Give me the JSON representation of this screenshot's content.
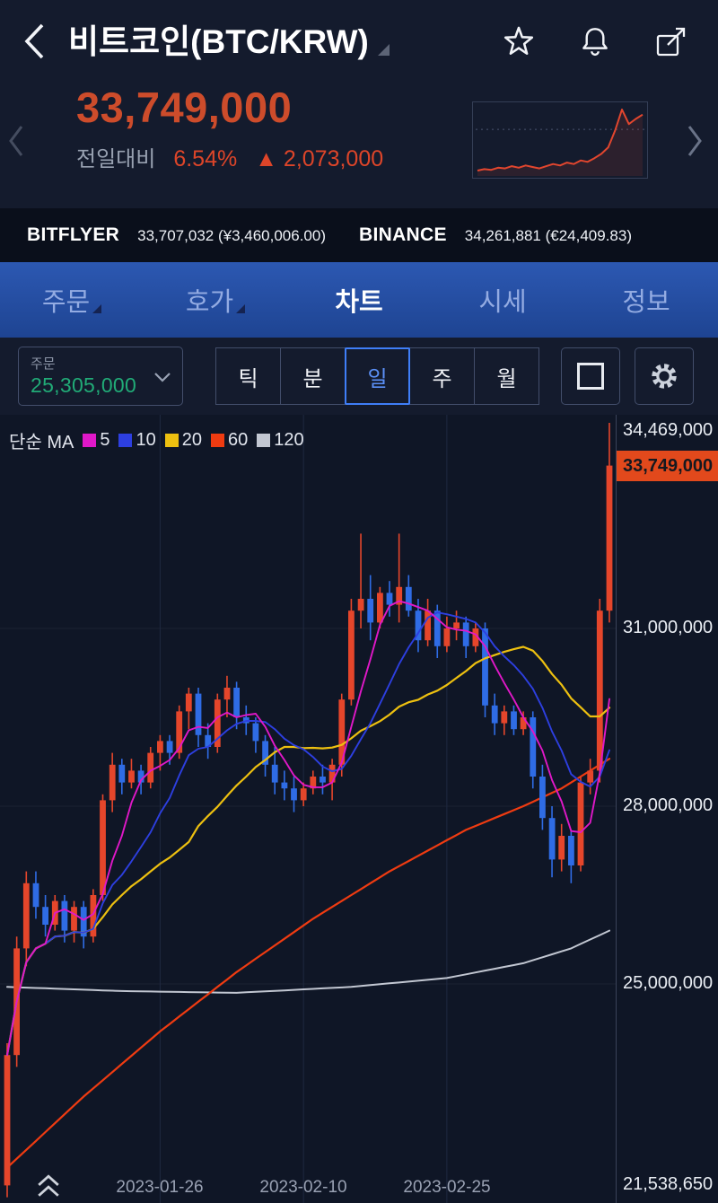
{
  "header": {
    "title": "비트코인(BTC/KRW)",
    "icons": {
      "back": "chevron-left",
      "title_caret": "triangle-down",
      "favorite": "star-outline",
      "alerts": "bell-outline",
      "share": "box-arrow-up-right",
      "prev": "chevron-left",
      "next": "chevron-right",
      "dropdown_caret": "chevron-down",
      "chart_style": "square-outline",
      "settings": "gear",
      "scroll_hint": "double-chevron-up"
    }
  },
  "price": {
    "current": "33,749,000",
    "change_label": "전일대비",
    "change_percent": "6.54%",
    "change_arrow": "▲",
    "change_value": "2,073,000"
  },
  "exchanges": [
    {
      "name": "BITFLYER",
      "value": "33,707,032 (¥3,460,006.00)"
    },
    {
      "name": "BINANCE",
      "value": "34,261,881 (€24,409.83)"
    }
  ],
  "tabs": [
    {
      "key": "order",
      "label": "주문",
      "has_submenu": true
    },
    {
      "key": "orderbook",
      "label": "호가",
      "has_submenu": true
    },
    {
      "key": "chart",
      "label": "차트",
      "active": true
    },
    {
      "key": "market",
      "label": "시세"
    },
    {
      "key": "info",
      "label": "정보"
    }
  ],
  "toolbar": {
    "order_dropdown": {
      "label": "주문",
      "value": "25,305,000",
      "value_color": "#21ab77"
    },
    "intervals": [
      "틱",
      "분",
      "일",
      "주",
      "월"
    ],
    "selected_interval": "일"
  },
  "chart": {
    "legend": {
      "title": "단순 MA",
      "items": [
        {
          "period": "5",
          "color": "#e018c8"
        },
        {
          "period": "10",
          "color": "#2d3fe0"
        },
        {
          "period": "20",
          "color": "#edc010"
        },
        {
          "period": "60",
          "color": "#ef3b11"
        },
        {
          "period": "120",
          "color": "#c2c7d2"
        }
      ]
    },
    "y_labels": [
      {
        "text": "34,469,000",
        "v": 34.469
      },
      {
        "text": "31,000,000",
        "v": 31.0
      },
      {
        "text": "28,000,000",
        "v": 28.0
      },
      {
        "text": "25,000,000",
        "v": 25.0
      },
      {
        "text": "21,538,650",
        "v": 21.53865
      }
    ],
    "current_tag": {
      "text": "33,749,000",
      "v": 33.749,
      "bg": "#e2491c"
    },
    "x_labels": [
      {
        "text": "2023-01-26",
        "i": 16
      },
      {
        "text": "2023-02-10",
        "i": 31
      },
      {
        "text": "2023-02-25",
        "i": 46
      }
    ]
  },
  "colors": {
    "up_candle": "#e5462b",
    "down_candle": "#2f6ce5",
    "price_up_text": "#dd4529",
    "big_price_text": "#cd4c2b",
    "green_value": "#21ab77",
    "current_tag_bg": "#e2491c",
    "tab_bar_blue": "#2c58b2"
  },
  "chart_data": [
    {
      "type": "candlestick",
      "unit": "million KRW",
      "interval": "1D",
      "up_color": "#e5462b",
      "down_color": "#2f6ce5",
      "y_ticks": [
        34.469,
        31.0,
        28.0,
        25.0,
        21.53865
      ],
      "x_ticks": [
        {
          "date": "2023-01-26",
          "index": 16
        },
        {
          "date": "2023-02-10",
          "index": 31
        },
        {
          "date": "2023-02-25",
          "index": 46
        }
      ],
      "last_price": 33.749,
      "ma_periods": [
        5,
        10,
        20,
        60,
        120
      ],
      "candles": [
        [
          21.6,
          24.0,
          21.4,
          23.8
        ],
        [
          23.8,
          25.8,
          23.6,
          25.6
        ],
        [
          25.6,
          26.9,
          25.3,
          26.7
        ],
        [
          26.7,
          26.9,
          26.1,
          26.3
        ],
        [
          26.3,
          26.5,
          25.8,
          26.0
        ],
        [
          26.0,
          26.5,
          25.9,
          26.4
        ],
        [
          26.4,
          26.5,
          25.7,
          25.9
        ],
        [
          25.9,
          26.4,
          25.7,
          26.3
        ],
        [
          26.3,
          26.4,
          25.6,
          25.8
        ],
        [
          25.8,
          26.6,
          25.7,
          26.5
        ],
        [
          26.5,
          28.2,
          26.4,
          28.1
        ],
        [
          28.1,
          28.9,
          27.9,
          28.7
        ],
        [
          28.7,
          28.8,
          28.2,
          28.4
        ],
        [
          28.4,
          28.8,
          28.3,
          28.6
        ],
        [
          28.6,
          28.7,
          28.2,
          28.4
        ],
        [
          28.4,
          29.0,
          28.3,
          28.9
        ],
        [
          28.9,
          29.2,
          28.6,
          29.1
        ],
        [
          29.1,
          29.2,
          28.7,
          28.9
        ],
        [
          28.9,
          29.7,
          28.8,
          29.6
        ],
        [
          29.6,
          30.0,
          29.3,
          29.9
        ],
        [
          29.9,
          30.0,
          29.0,
          29.2
        ],
        [
          29.2,
          29.4,
          28.8,
          29.0
        ],
        [
          29.0,
          29.9,
          28.9,
          29.8
        ],
        [
          29.8,
          30.2,
          29.5,
          30.0
        ],
        [
          30.0,
          30.1,
          29.3,
          29.5
        ],
        [
          29.5,
          29.7,
          29.2,
          29.4
        ],
        [
          29.4,
          29.5,
          28.9,
          29.1
        ],
        [
          29.1,
          29.2,
          28.5,
          28.7
        ],
        [
          28.7,
          29.0,
          28.2,
          28.4
        ],
        [
          28.4,
          28.6,
          28.1,
          28.3
        ],
        [
          28.3,
          28.5,
          27.9,
          28.1
        ],
        [
          28.1,
          28.4,
          28.0,
          28.3
        ],
        [
          28.3,
          28.6,
          28.2,
          28.5
        ],
        [
          28.5,
          28.7,
          28.2,
          28.4
        ],
        [
          28.4,
          28.8,
          28.1,
          28.7
        ],
        [
          28.7,
          29.9,
          28.5,
          29.8
        ],
        [
          29.8,
          31.5,
          29.7,
          31.3
        ],
        [
          31.3,
          32.6,
          31.0,
          31.5
        ],
        [
          31.5,
          31.9,
          30.8,
          31.1
        ],
        [
          31.1,
          31.7,
          31.0,
          31.6
        ],
        [
          31.6,
          31.8,
          31.2,
          31.4
        ],
        [
          31.4,
          32.6,
          31.1,
          31.7
        ],
        [
          31.7,
          31.9,
          31.2,
          31.3
        ],
        [
          31.3,
          31.5,
          30.6,
          30.8
        ],
        [
          30.8,
          31.5,
          30.7,
          31.3
        ],
        [
          31.3,
          31.4,
          30.5,
          30.7
        ],
        [
          30.7,
          31.2,
          30.6,
          31.0
        ],
        [
          31.0,
          31.3,
          30.8,
          31.1
        ],
        [
          31.1,
          31.2,
          30.5,
          30.7
        ],
        [
          30.7,
          31.1,
          30.6,
          31.0
        ],
        [
          31.0,
          31.1,
          29.5,
          29.7
        ],
        [
          29.7,
          29.9,
          29.2,
          29.4
        ],
        [
          29.4,
          29.7,
          29.2,
          29.6
        ],
        [
          29.6,
          29.7,
          29.2,
          29.3
        ],
        [
          29.3,
          29.6,
          29.2,
          29.5
        ],
        [
          29.5,
          29.6,
          28.3,
          28.5
        ],
        [
          28.5,
          28.7,
          27.6,
          27.8
        ],
        [
          27.8,
          28.0,
          26.8,
          27.1
        ],
        [
          27.1,
          27.7,
          26.9,
          27.5
        ],
        [
          27.5,
          27.6,
          26.7,
          27.0
        ],
        [
          27.0,
          28.5,
          26.9,
          28.4
        ],
        [
          28.4,
          28.8,
          28.2,
          28.6
        ],
        [
          28.6,
          31.5,
          28.4,
          31.3
        ],
        [
          31.3,
          34.469,
          31.1,
          33.749
        ]
      ],
      "ma60_anchors": [
        [
          0,
          21.9
        ],
        [
          8,
          23.1
        ],
        [
          16,
          24.2
        ],
        [
          24,
          25.2
        ],
        [
          32,
          26.1
        ],
        [
          40,
          26.9
        ],
        [
          48,
          27.6
        ],
        [
          54,
          28.0
        ],
        [
          58,
          28.3
        ],
        [
          63,
          28.8
        ]
      ],
      "ma120_anchors": [
        [
          0,
          24.95
        ],
        [
          12,
          24.88
        ],
        [
          24,
          24.85
        ],
        [
          36,
          24.95
        ],
        [
          46,
          25.1
        ],
        [
          54,
          25.35
        ],
        [
          59,
          25.6
        ],
        [
          63,
          25.9
        ]
      ]
    },
    {
      "type": "line",
      "name": "header-sparkline",
      "unit": "million KRW",
      "color": "#e2462e",
      "prev_close_reference": 31.676,
      "values": [
        26.0,
        26.2,
        26.1,
        26.4,
        26.3,
        26.6,
        26.4,
        26.7,
        26.5,
        26.3,
        26.6,
        26.9,
        26.7,
        27.1,
        26.9,
        27.4,
        27.2,
        27.7,
        28.3,
        29.2,
        31.5,
        34.4,
        32.4,
        33.1,
        33.7
      ]
    }
  ]
}
